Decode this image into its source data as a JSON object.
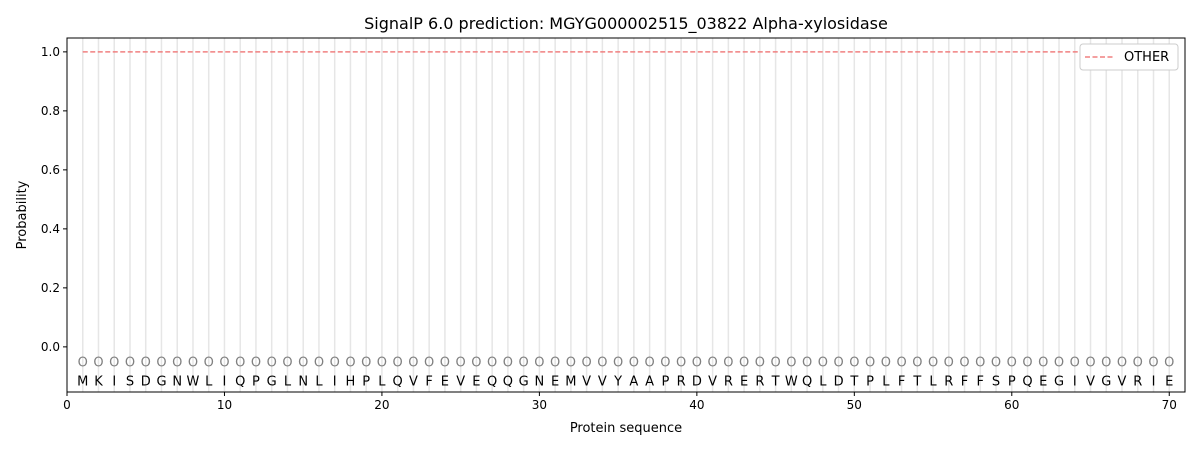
{
  "chart_data": {
    "type": "line",
    "title": "SignalP 6.0 prediction: MGYG000002515_03822 Alpha-xylosidase",
    "xlabel": "Protein sequence",
    "ylabel": "Probability",
    "xlim": [
      0,
      71
    ],
    "ylim": [
      -0.153,
      1.047
    ],
    "xticks": [
      0,
      10,
      20,
      30,
      40,
      50,
      60,
      70
    ],
    "yticks": [
      "0.0",
      "0.2",
      "0.4",
      "0.6",
      "0.8",
      "1.0"
    ],
    "legend_position": "top-right",
    "grid": "vertical lines at each residue",
    "series": [
      {
        "name": "OTHER",
        "color": "#f08080",
        "style": "dashed",
        "x_start": 1,
        "x_end": 70,
        "value": 1.0
      }
    ],
    "sequence": [
      "M",
      "K",
      "I",
      "S",
      "D",
      "G",
      "N",
      "W",
      "L",
      "I",
      "Q",
      "P",
      "G",
      "L",
      "N",
      "L",
      "I",
      "H",
      "P",
      "L",
      "Q",
      "V",
      "F",
      "E",
      "V",
      "E",
      "Q",
      "Q",
      "G",
      "N",
      "E",
      "M",
      "V",
      "V",
      "Y",
      "A",
      "A",
      "P",
      "R",
      "D",
      "V",
      "R",
      "E",
      "R",
      "T",
      "W",
      "Q",
      "L",
      "D",
      "T",
      "P",
      "L",
      "F",
      "T",
      "L",
      "R",
      "F",
      "F",
      "S",
      "P",
      "Q",
      "E",
      "G",
      "I",
      "V",
      "G",
      "V",
      "R",
      "I",
      "E"
    ],
    "region_labels": "O"
  }
}
